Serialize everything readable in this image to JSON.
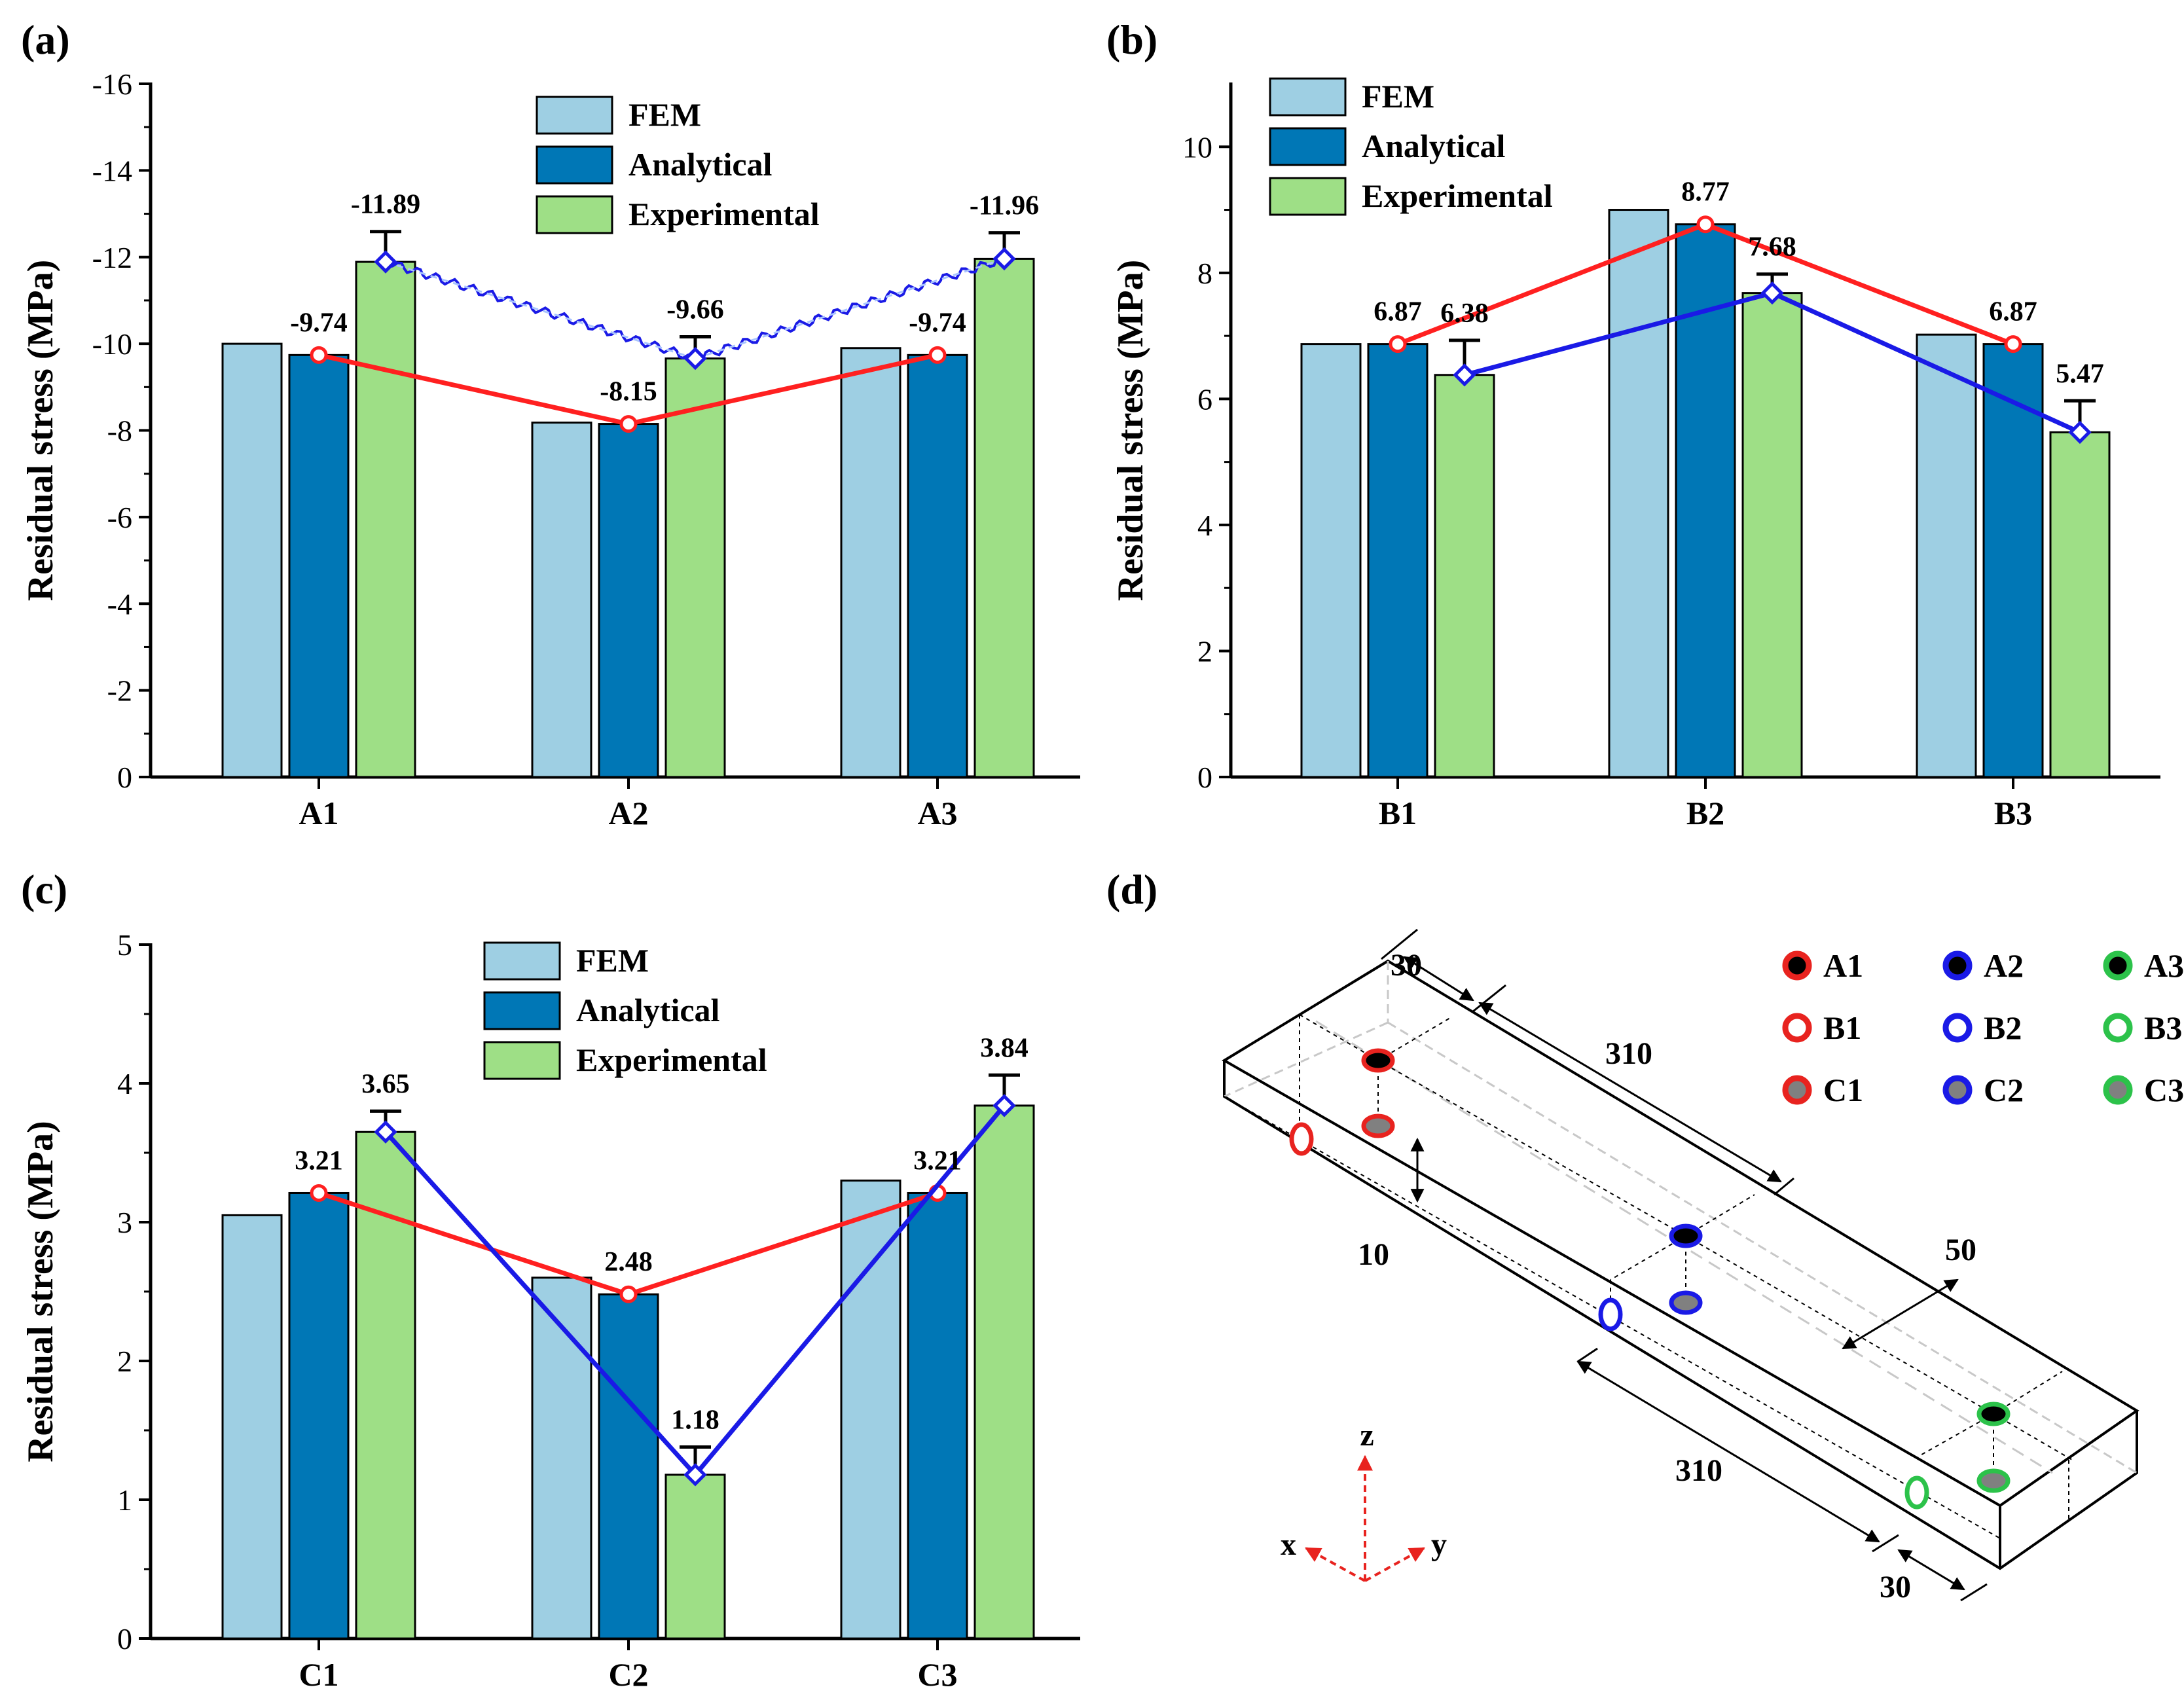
{
  "colors": {
    "fem": "#9ecfe3",
    "analytical": "#0077b6",
    "experimental": "#9edf86",
    "analytical_line": "#ff2020",
    "experimental_line": "#1a1ae6",
    "axis": "#000000"
  },
  "legend_labels": [
    "FEM",
    "Analytical",
    "Experimental"
  ],
  "chart_data": [
    {
      "panel": "(a)",
      "type": "bar",
      "ylabel": "Residual stress (MPa)",
      "categories": [
        "A1",
        "A2",
        "A3"
      ],
      "ylim": [
        0,
        -16
      ],
      "yticks": [
        0,
        -2,
        -4,
        -6,
        -8,
        -10,
        -12,
        -14,
        -16
      ],
      "ytick_labels": [
        "0",
        "-2",
        "-4",
        "-6",
        "-8",
        "-10",
        "-12",
        "-14",
        "-16"
      ],
      "series": [
        {
          "name": "FEM",
          "values": [
            -10.0,
            -8.18,
            -9.9
          ]
        },
        {
          "name": "Analytical",
          "values": [
            -9.74,
            -8.15,
            -9.74
          ]
        },
        {
          "name": "Experimental",
          "values": [
            -11.89,
            -9.66,
            -11.96
          ],
          "errors": [
            0.7,
            0.5,
            0.6
          ]
        }
      ],
      "analytical_labels": [
        "-9.74",
        "-8.15",
        "-9.74"
      ],
      "experimental_labels": [
        "-11.89",
        "-9.66",
        "-11.96"
      ],
      "experimental_line_style": "wavy",
      "legend_position": "top-center"
    },
    {
      "panel": "(b)",
      "type": "bar",
      "ylabel": "Residual stress (MPa)",
      "categories": [
        "B1",
        "B2",
        "B3"
      ],
      "ylim": [
        0,
        11
      ],
      "yticks": [
        0,
        2,
        4,
        6,
        8,
        10
      ],
      "ytick_labels": [
        "0",
        "2",
        "4",
        "6",
        "8",
        "10"
      ],
      "series": [
        {
          "name": "FEM",
          "values": [
            6.87,
            9.0,
            7.02
          ]
        },
        {
          "name": "Analytical",
          "values": [
            6.87,
            8.77,
            6.87
          ]
        },
        {
          "name": "Experimental",
          "values": [
            6.38,
            7.68,
            5.47
          ],
          "errors": [
            0.55,
            0.3,
            0.5
          ]
        }
      ],
      "analytical_labels": [
        "6.87",
        "8.77",
        "6.87"
      ],
      "experimental_labels": [
        "6.38",
        "7.68",
        "5.47"
      ],
      "experimental_line_style": "solid",
      "legend_position": "top-left"
    },
    {
      "panel": "(c)",
      "type": "bar",
      "ylabel": "Residual stress (MPa)",
      "categories": [
        "C1",
        "C2",
        "C3"
      ],
      "ylim": [
        0,
        5
      ],
      "yticks": [
        0,
        1,
        2,
        3,
        4,
        5
      ],
      "ytick_labels": [
        "0",
        "1",
        "2",
        "3",
        "4",
        "5"
      ],
      "series": [
        {
          "name": "FEM",
          "values": [
            3.05,
            2.6,
            3.3
          ]
        },
        {
          "name": "Analytical",
          "values": [
            3.21,
            2.48,
            3.21
          ]
        },
        {
          "name": "Experimental",
          "values": [
            3.65,
            1.18,
            3.84
          ],
          "errors": [
            0.15,
            0.2,
            0.22
          ]
        }
      ],
      "analytical_labels": [
        "3.21",
        "2.48",
        "3.21"
      ],
      "experimental_labels": [
        "3.65",
        "1.18",
        "3.84"
      ],
      "experimental_line_style": "solid",
      "legend_position": "top-center"
    }
  ],
  "panel_d": {
    "label": "(d)",
    "legend": [
      {
        "label": "A1",
        "stroke": "#e8231f",
        "fill": "#000000"
      },
      {
        "label": "A2",
        "stroke": "#1a1ae6",
        "fill": "#000000"
      },
      {
        "label": "A3",
        "stroke": "#2cc24a",
        "fill": "#000000"
      },
      {
        "label": "B1",
        "stroke": "#e8231f",
        "fill": "#ffffff"
      },
      {
        "label": "B2",
        "stroke": "#1a1ae6",
        "fill": "#ffffff"
      },
      {
        "label": "B3",
        "stroke": "#2cc24a",
        "fill": "#ffffff"
      },
      {
        "label": "C1",
        "stroke": "#e8231f",
        "fill": "#808080"
      },
      {
        "label": "C2",
        "stroke": "#1a1ae6",
        "fill": "#808080"
      },
      {
        "label": "C3",
        "stroke": "#2cc24a",
        "fill": "#808080"
      }
    ],
    "dimensions": {
      "top_width": "30",
      "top_length": "310",
      "depth": "10",
      "width": "50",
      "bottom_length": "310",
      "bottom_width": "30"
    },
    "axes": {
      "x": "x",
      "y": "y",
      "z": "z"
    }
  }
}
